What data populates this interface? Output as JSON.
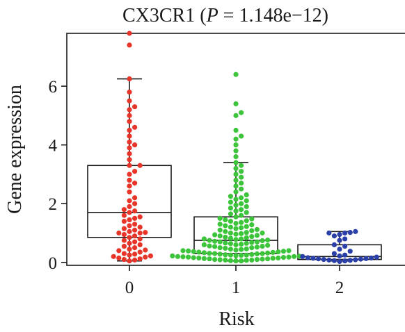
{
  "chart_data": {
    "type": "box",
    "title_prefix": "CX3CR1 (",
    "title_p": "P",
    "title_suffix": " = 1.148e−12)",
    "xlabel": "Risk",
    "ylabel": "Gene expression",
    "categories": [
      "0",
      "1",
      "2"
    ],
    "ylim": [
      -0.1,
      7.8
    ],
    "yticks": [
      0,
      2,
      4,
      6
    ],
    "grid": false,
    "legend": "none",
    "series": [
      {
        "category": "0",
        "color": "#e8352a",
        "whisker_low": 0.05,
        "q1": 0.85,
        "median": 1.7,
        "q3": 3.3,
        "whisker_high": 6.25,
        "outliers": [
          7.8,
          7.4
        ],
        "points": [
          0.05,
          0.08,
          0.1,
          0.12,
          0.15,
          0.18,
          0.2,
          0.22,
          0.25,
          0.28,
          0.3,
          0.35,
          0.4,
          0.42,
          0.45,
          0.5,
          0.55,
          0.6,
          0.65,
          0.7,
          0.75,
          0.8,
          0.85,
          0.9,
          0.95,
          1.0,
          1.0,
          1.02,
          1.05,
          1.1,
          1.15,
          1.2,
          1.25,
          1.3,
          1.4,
          1.45,
          1.5,
          1.55,
          1.6,
          1.7,
          1.75,
          1.8,
          1.9,
          2.0,
          2.1,
          2.2,
          2.4,
          2.6,
          2.7,
          2.8,
          3.0,
          3.1,
          3.3,
          3.3,
          3.5,
          3.7,
          3.9,
          4.0,
          4.1,
          4.3,
          4.5,
          4.6,
          4.8,
          5.0,
          5.2,
          5.3,
          5.5,
          5.8,
          6.25,
          7.4,
          7.8
        ]
      },
      {
        "category": "1",
        "color": "#3cc43a",
        "whisker_low": 0.05,
        "q1": 0.3,
        "median": 0.75,
        "q3": 1.55,
        "whisker_high": 3.4,
        "outliers": [
          6.4
        ],
        "points": [
          0.05,
          0.05,
          0.06,
          0.07,
          0.08,
          0.08,
          0.09,
          0.1,
          0.1,
          0.11,
          0.12,
          0.12,
          0.13,
          0.14,
          0.15,
          0.15,
          0.16,
          0.17,
          0.18,
          0.18,
          0.19,
          0.2,
          0.2,
          0.21,
          0.22,
          0.23,
          0.24,
          0.25,
          0.25,
          0.26,
          0.27,
          0.28,
          0.29,
          0.3,
          0.3,
          0.31,
          0.32,
          0.33,
          0.34,
          0.35,
          0.36,
          0.37,
          0.38,
          0.39,
          0.4,
          0.4,
          0.42,
          0.44,
          0.45,
          0.46,
          0.48,
          0.5,
          0.5,
          0.52,
          0.54,
          0.55,
          0.56,
          0.58,
          0.6,
          0.6,
          0.62,
          0.64,
          0.65,
          0.66,
          0.68,
          0.7,
          0.7,
          0.72,
          0.74,
          0.75,
          0.76,
          0.78,
          0.8,
          0.8,
          0.82,
          0.84,
          0.86,
          0.88,
          0.9,
          0.92,
          0.94,
          0.96,
          0.98,
          1.0,
          1.0,
          1.02,
          1.05,
          1.08,
          1.1,
          1.12,
          1.15,
          1.18,
          1.2,
          1.22,
          1.25,
          1.28,
          1.3,
          1.33,
          1.36,
          1.4,
          1.42,
          1.45,
          1.48,
          1.5,
          1.55,
          1.6,
          1.65,
          1.7,
          1.75,
          1.8,
          1.85,
          1.9,
          1.95,
          2.0,
          2.05,
          2.1,
          2.15,
          2.2,
          2.25,
          2.3,
          2.4,
          2.5,
          2.6,
          2.7,
          2.8,
          2.9,
          3.0,
          3.1,
          3.2,
          3.3,
          3.4,
          3.6,
          3.8,
          4.0,
          4.2,
          4.3,
          4.5,
          5.0,
          5.1,
          5.4,
          6.4
        ]
      },
      {
        "category": "2",
        "color": "#2b3fa8",
        "whisker_low": 0.05,
        "q1": 0.1,
        "median": 0.2,
        "q3": 0.6,
        "whisker_high": 1.05,
        "outliers": [],
        "points": [
          0.03,
          0.05,
          0.06,
          0.07,
          0.08,
          0.09,
          0.1,
          0.11,
          0.12,
          0.13,
          0.14,
          0.15,
          0.16,
          0.18,
          0.2,
          0.22,
          0.25,
          0.3,
          0.38,
          0.45,
          0.55,
          0.6,
          0.75,
          0.8,
          0.9,
          0.95,
          1.0,
          1.0,
          1.02,
          1.05
        ]
      }
    ]
  }
}
